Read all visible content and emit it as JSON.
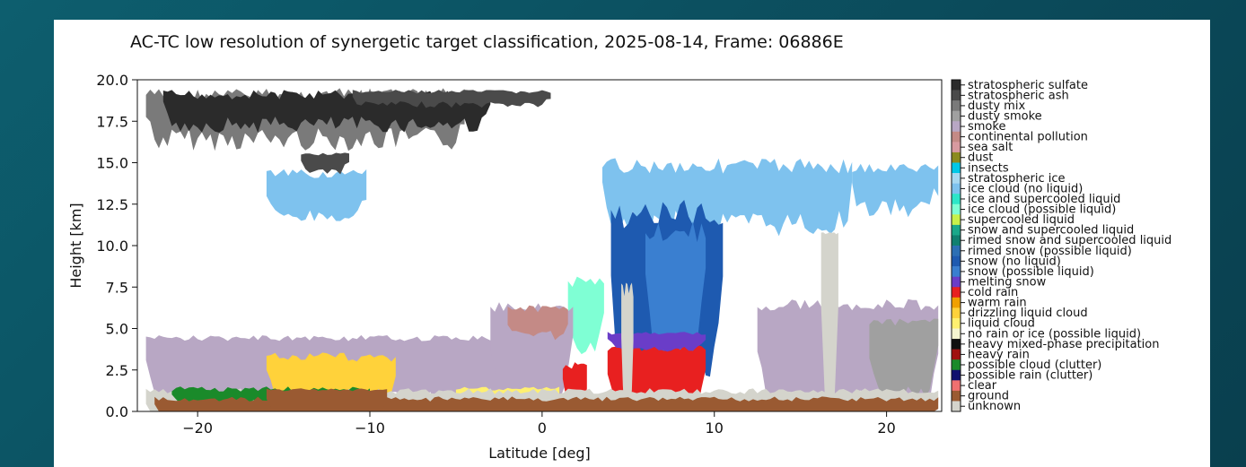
{
  "chart_data": {
    "type": "heatmap",
    "title": "AC-TC low resolution of synergetic target classification, 2025-08-14, Frame: 06886E",
    "xlabel": "Latitude [deg]",
    "ylabel": "Height [km]",
    "xlim": [
      -23.5,
      23.2
    ],
    "ylim": [
      0.0,
      20.0
    ],
    "xticks": [
      {
        "value": -20,
        "label": "−20"
      },
      {
        "value": -10,
        "label": "−10"
      },
      {
        "value": 0,
        "label": "0"
      },
      {
        "value": 10,
        "label": "10"
      },
      {
        "value": 20,
        "label": "20"
      }
    ],
    "yticks": [
      {
        "value": 0.0,
        "label": "0.0"
      },
      {
        "value": 2.5,
        "label": "2.5"
      },
      {
        "value": 5.0,
        "label": "5.0"
      },
      {
        "value": 7.5,
        "label": "7.5"
      },
      {
        "value": 10.0,
        "label": "10.0"
      },
      {
        "value": 12.5,
        "label": "12.5"
      },
      {
        "value": 15.0,
        "label": "15.0"
      },
      {
        "value": 17.5,
        "label": "17.5"
      },
      {
        "value": 20.0,
        "label": "20.0"
      }
    ],
    "classes": [
      {
        "label": "stratospheric sulfate",
        "color": "#2b2b2b"
      },
      {
        "label": "stratospheric ash",
        "color": "#4a4a4a"
      },
      {
        "label": "dusty mix",
        "color": "#7a7a7a"
      },
      {
        "label": "dusty smoke",
        "color": "#a0a0a0"
      },
      {
        "label": "smoke",
        "color": "#b8a7c4"
      },
      {
        "label": "continental pollution",
        "color": "#c48a86"
      },
      {
        "label": "sea salt",
        "color": "#d89aa0"
      },
      {
        "label": "dust",
        "color": "#8b8b1e"
      },
      {
        "label": "insects",
        "color": "#00c8e6"
      },
      {
        "label": "stratospheric ice",
        "color": "#a8d8f0"
      },
      {
        "label": "ice cloud (no liquid)",
        "color": "#7ec2ee"
      },
      {
        "label": "ice and supercooled liquid",
        "color": "#2de6c8"
      },
      {
        "label": "ice cloud (possible liquid)",
        "color": "#7fffd4"
      },
      {
        "label": "supercooled liquid",
        "color": "#c8f04a"
      },
      {
        "label": "snow and supercooled liquid",
        "color": "#1aa88a"
      },
      {
        "label": "rimed snow and supercooled liquid",
        "color": "#108070"
      },
      {
        "label": "rimed snow (possible liquid)",
        "color": "#2c6fb4"
      },
      {
        "label": "snow (no liquid)",
        "color": "#1e5ab0"
      },
      {
        "label": "snow (possible liquid)",
        "color": "#3a7fd0"
      },
      {
        "label": "melting snow",
        "color": "#6a3dc8"
      },
      {
        "label": "cold rain",
        "color": "#e82020"
      },
      {
        "label": "warm rain",
        "color": "#f0a000"
      },
      {
        "label": "drizzling liquid cloud",
        "color": "#ffd23a"
      },
      {
        "label": "liquid cloud",
        "color": "#fff070"
      },
      {
        "label": "no rain or ice (possible liquid)",
        "color": "#f5f5d0"
      },
      {
        "label": "heavy mixed-phase precipitation",
        "color": "#101010"
      },
      {
        "label": "heavy rain",
        "color": "#a01010"
      },
      {
        "label": "possible cloud (clutter)",
        "color": "#1a8a2a"
      },
      {
        "label": "possible rain (clutter)",
        "color": "#10106e"
      },
      {
        "label": "clear",
        "color": "#f07070"
      },
      {
        "label": "ground",
        "color": "#9a5a32"
      },
      {
        "label": "unknown",
        "color": "#d4d4cc"
      }
    ],
    "regions": [
      {
        "class": "dusty mix",
        "x0": -23.0,
        "x1": -4.5,
        "top": 19.5,
        "depth": 2.4,
        "amp": 1.4
      },
      {
        "class": "stratospheric sulfate",
        "x0": -22.0,
        "x1": -3.0,
        "top": 19.4,
        "depth": 1.6,
        "amp": 1.0
      },
      {
        "class": "stratospheric ash",
        "x0": -11.0,
        "x1": 0.5,
        "top": 19.4,
        "depth": 0.7,
        "amp": 0.4
      },
      {
        "class": "ice cloud (no liquid)",
        "x0": -16.0,
        "x1": -10.2,
        "top": 14.6,
        "depth": 2.4,
        "amp": 0.9
      },
      {
        "class": "stratospheric ash",
        "x0": -14.0,
        "x1": -11.2,
        "top": 15.6,
        "depth": 1.0,
        "amp": 0.3
      },
      {
        "class": "ice cloud (no liquid)",
        "x0": 3.5,
        "x1": 18.0,
        "top": 15.3,
        "depth": 3.2,
        "amp": 1.6
      },
      {
        "class": "ice cloud (no liquid)",
        "x0": 18.0,
        "x1": 23.0,
        "top": 15.0,
        "depth": 2.2,
        "amp": 1.2
      },
      {
        "class": "snow (no liquid)",
        "x0": 4.0,
        "x1": 10.5,
        "top": 12.8,
        "depth": 8.5,
        "amp": 3.0
      },
      {
        "class": "snow (possible liquid)",
        "x0": 6.0,
        "x1": 9.5,
        "top": 11.5,
        "depth": 7.0,
        "amp": 2.2
      },
      {
        "class": "ice cloud (possible liquid)",
        "x0": 1.5,
        "x1": 3.6,
        "top": 8.2,
        "depth": 4.0,
        "amp": 1.2
      },
      {
        "class": "smoke",
        "x0": -23.0,
        "x1": 0.5,
        "top": 4.6,
        "depth": 3.4,
        "amp": 0.6
      },
      {
        "class": "smoke",
        "x0": -3.0,
        "x1": 1.8,
        "top": 6.6,
        "depth": 5.0,
        "amp": 1.0
      },
      {
        "class": "continental pollution",
        "x0": -2.0,
        "x1": 1.5,
        "top": 6.4,
        "depth": 1.5,
        "amp": 0.7
      },
      {
        "class": "smoke",
        "x0": 12.5,
        "x1": 23.0,
        "top": 6.8,
        "depth": 5.5,
        "amp": 1.2
      },
      {
        "class": "dusty smoke",
        "x0": 19.0,
        "x1": 23.0,
        "top": 5.6,
        "depth": 4.0,
        "amp": 0.8
      },
      {
        "class": "cold rain",
        "x0": 3.8,
        "x1": 9.5,
        "top": 4.0,
        "depth": 3.6,
        "amp": 0.6
      },
      {
        "class": "melting snow",
        "x0": 3.8,
        "x1": 9.5,
        "top": 4.8,
        "depth": 0.9,
        "amp": 0.3
      },
      {
        "class": "cold rain",
        "x0": 1.2,
        "x1": 2.6,
        "top": 3.0,
        "depth": 2.6,
        "amp": 0.8
      },
      {
        "class": "drizzling liquid cloud",
        "x0": -16.0,
        "x1": -8.5,
        "top": 3.6,
        "depth": 2.2,
        "amp": 1.0
      },
      {
        "class": "liquid cloud",
        "x0": -5.0,
        "x1": 1.0,
        "top": 1.5,
        "depth": 1.0,
        "amp": 0.4
      },
      {
        "class": "unknown",
        "x0": -23.0,
        "x1": 23.0,
        "top": 1.4,
        "depth": 1.4,
        "amp": 0.6
      },
      {
        "class": "unknown",
        "x0": 16.2,
        "x1": 17.2,
        "top": 10.8,
        "depth": 10.8,
        "amp": 0.2
      },
      {
        "class": "unknown",
        "x0": 4.6,
        "x1": 5.3,
        "top": 7.8,
        "depth": 7.8,
        "amp": 1.5
      },
      {
        "class": "possible cloud (clutter)",
        "x0": -21.5,
        "x1": -10.0,
        "top": 1.5,
        "depth": 0.8,
        "amp": 0.5
      },
      {
        "class": "ground",
        "x0": -22.5,
        "x1": 23.0,
        "top": 0.9,
        "depth": 0.9,
        "amp": 0.5
      },
      {
        "class": "ground",
        "x0": -16.0,
        "x1": -9.0,
        "top": 1.4,
        "depth": 1.4,
        "amp": 0.3
      }
    ]
  }
}
